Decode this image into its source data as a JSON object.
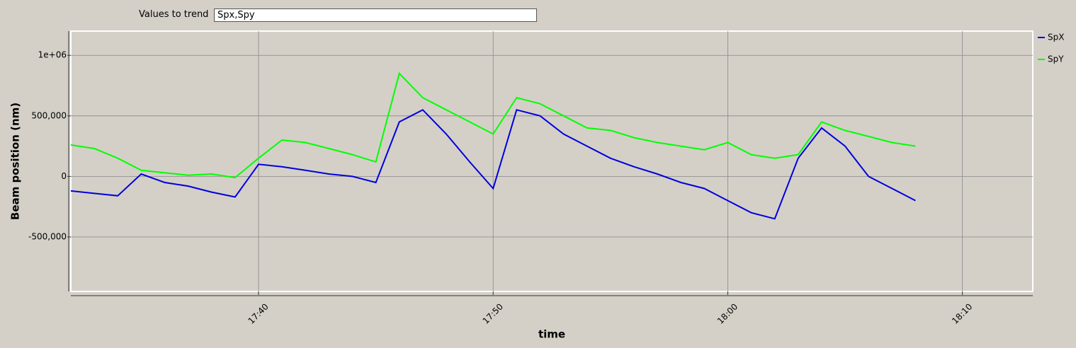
{
  "controls": {
    "label": "Values to trend",
    "value": "Spx,Spy"
  },
  "chart_data": {
    "type": "line",
    "y_label": "Beam position (nm)",
    "x_label": "time",
    "x": [
      "17:32",
      "17:33",
      "17:34",
      "17:35",
      "17:36",
      "17:37",
      "17:38",
      "17:39",
      "17:40",
      "17:41",
      "17:42",
      "17:43",
      "17:44",
      "17:45",
      "17:46",
      "17:47",
      "17:48",
      "17:49",
      "17:50",
      "17:51",
      "17:52",
      "17:53",
      "17:54",
      "17:55",
      "17:56",
      "17:57",
      "17:58",
      "17:59",
      "18:00",
      "18:01",
      "18:02",
      "18:03",
      "18:04",
      "18:05",
      "18:06",
      "18:07",
      "18:08"
    ],
    "series": [
      {
        "name": "SpX",
        "color": "#0000dd",
        "values": [
          -120000,
          -140000,
          -160000,
          20000,
          -50000,
          -80000,
          -130000,
          -170000,
          100000,
          80000,
          50000,
          20000,
          0,
          -50000,
          450000,
          550000,
          350000,
          120000,
          -100000,
          550000,
          500000,
          350000,
          250000,
          150000,
          80000,
          20000,
          -50000,
          -100000,
          -200000,
          -300000,
          -350000,
          150000,
          400000,
          250000,
          0,
          -100000,
          -200000
        ]
      },
      {
        "name": "SpY",
        "color": "#00ff00",
        "values": [
          260000,
          230000,
          150000,
          50000,
          30000,
          10000,
          20000,
          -10000,
          150000,
          300000,
          280000,
          230000,
          180000,
          120000,
          850000,
          650000,
          550000,
          450000,
          350000,
          650000,
          600000,
          500000,
          400000,
          380000,
          320000,
          280000,
          250000,
          220000,
          280000,
          180000,
          150000,
          180000,
          450000,
          380000,
          330000,
          280000,
          250000
        ]
      }
    ],
    "xlim": [
      "17:32",
      "18:13"
    ],
    "xticks": [
      "17:40",
      "17:50",
      "18:00",
      "18:10"
    ],
    "ylim": [
      -950000,
      1200000
    ],
    "yticks": [
      {
        "value": -500000,
        "label": "-500,000"
      },
      0,
      {
        "value": 500000,
        "label": "500,000"
      },
      {
        "value": 1000000,
        "label": "1e+06"
      }
    ],
    "grid": true
  }
}
